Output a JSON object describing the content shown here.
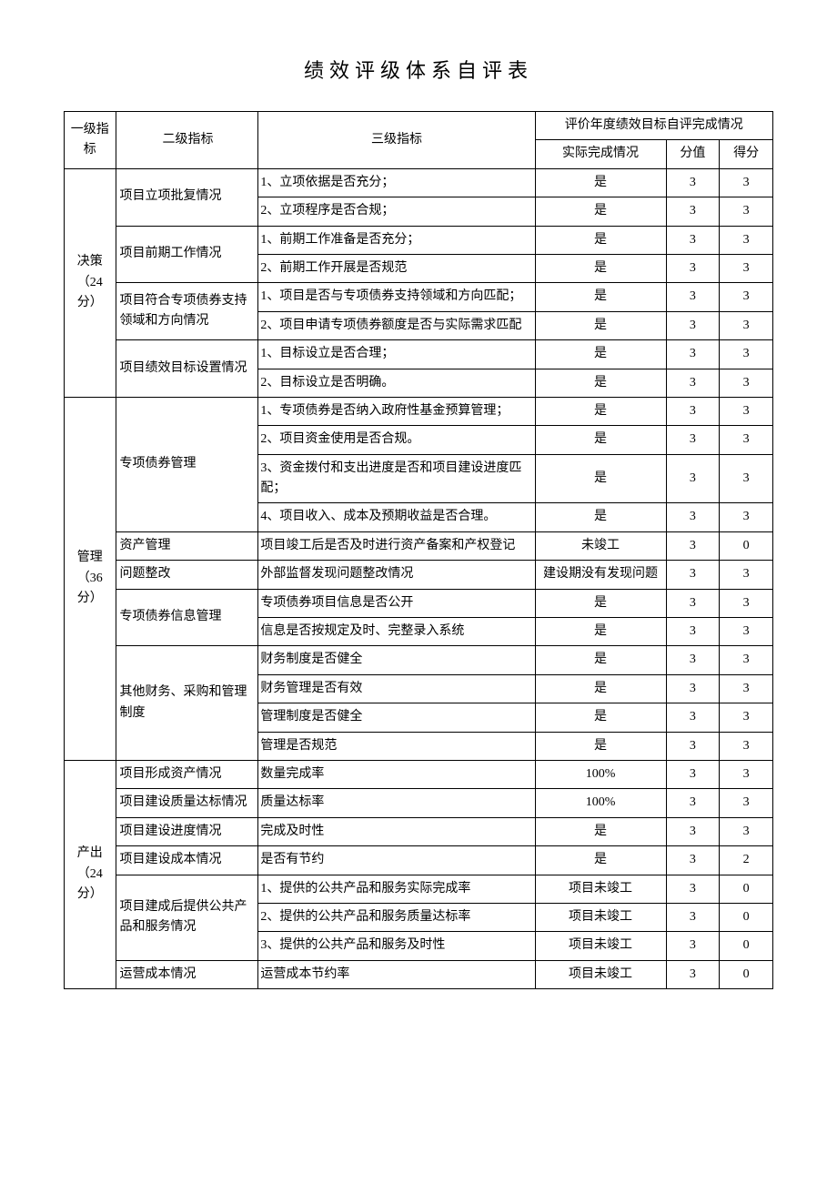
{
  "title": "绩效评级体系自评表",
  "headers": {
    "l1": "一级指标",
    "l2": "二级指标",
    "l3": "三级指标",
    "eval_group": "评价年度绩效目标自评完成情况",
    "actual": "实际完成情况",
    "score": "分值",
    "get": "得分"
  },
  "sections": [
    {
      "l1": "决策（24 分）",
      "groups": [
        {
          "l2": "项目立项批复情况",
          "rows": [
            {
              "l3": "1、立项依据是否充分；",
              "actual": "是",
              "score": "3",
              "get": "3"
            },
            {
              "l3": "2、立项程序是否合规；",
              "actual": "是",
              "score": "3",
              "get": "3"
            }
          ]
        },
        {
          "l2": "项目前期工作情况",
          "rows": [
            {
              "l3": "1、前期工作准备是否充分；",
              "actual": "是",
              "score": "3",
              "get": "3"
            },
            {
              "l3": "2、前期工作开展是否规范",
              "actual": "是",
              "score": "3",
              "get": "3"
            }
          ]
        },
        {
          "l2": "项目符合专项债券支持领域和方向情况",
          "rows": [
            {
              "l3": "1、项目是否与专项债券支持领域和方向匹配；",
              "actual": "是",
              "score": "3",
              "get": "3"
            },
            {
              "l3": "2、项目申请专项债券额度是否与实际需求匹配",
              "actual": "是",
              "score": "3",
              "get": "3"
            }
          ]
        },
        {
          "l2": "项目绩效目标设置情况",
          "rows": [
            {
              "l3": "1、目标设立是否合理；",
              "actual": "是",
              "score": "3",
              "get": "3"
            },
            {
              "l3": "2、目标设立是否明确。",
              "actual": "是",
              "score": "3",
              "get": "3"
            }
          ]
        }
      ]
    },
    {
      "l1": "管理（36 分）",
      "groups": [
        {
          "l2": "专项债券管理",
          "rows": [
            {
              "l3": "1、专项债券是否纳入政府性基金预算管理；",
              "actual": "是",
              "score": "3",
              "get": "3"
            },
            {
              "l3": "2、项目资金使用是否合规。",
              "actual": "是",
              "score": "3",
              "get": "3"
            },
            {
              "l3": "3、资金拨付和支出进度是否和项目建设进度匹配；",
              "actual": "是",
              "score": "3",
              "get": "3"
            },
            {
              "l3": "4、项目收入、成本及预期收益是否合理。",
              "actual": "是",
              "score": "3",
              "get": "3"
            }
          ]
        },
        {
          "l2": "资产管理",
          "rows": [
            {
              "l3": "项目竣工后是否及时进行资产备案和产权登记",
              "actual": "未竣工",
              "score": "3",
              "get": "0"
            }
          ]
        },
        {
          "l2": "问题整改",
          "rows": [
            {
              "l3": "外部监督发现问题整改情况",
              "actual": "建设期没有发现问题",
              "score": "3",
              "get": "3"
            }
          ]
        },
        {
          "l2": "专项债券信息管理",
          "rows": [
            {
              "l3": "专项债券项目信息是否公开",
              "actual": "是",
              "score": "3",
              "get": "3"
            },
            {
              "l3": "信息是否按规定及时、完整录入系统",
              "actual": "是",
              "score": "3",
              "get": "3"
            }
          ]
        },
        {
          "l2": "其他财务、采购和管理制度",
          "rows": [
            {
              "l3": "财务制度是否健全",
              "actual": "是",
              "score": "3",
              "get": "3"
            },
            {
              "l3": "财务管理是否有效",
              "actual": "是",
              "score": "3",
              "get": "3"
            },
            {
              "l3": "管理制度是否健全",
              "actual": "是",
              "score": "3",
              "get": "3"
            },
            {
              "l3": "管理是否规范",
              "actual": "是",
              "score": "3",
              "get": "3"
            }
          ]
        }
      ]
    },
    {
      "l1": "产出（24 分）",
      "groups": [
        {
          "l2": "项目形成资产情况",
          "rows": [
            {
              "l3": "数量完成率",
              "actual": "100%",
              "score": "3",
              "get": "3"
            }
          ]
        },
        {
          "l2": "项目建设质量达标情况",
          "rows": [
            {
              "l3": "质量达标率",
              "actual": "100%",
              "score": "3",
              "get": "3"
            }
          ]
        },
        {
          "l2": "项目建设进度情况",
          "rows": [
            {
              "l3": "完成及时性",
              "actual": "是",
              "score": "3",
              "get": "3"
            }
          ]
        },
        {
          "l2": "项目建设成本情况",
          "rows": [
            {
              "l3": "是否有节约",
              "actual": "是",
              "score": "3",
              "get": "2"
            }
          ]
        },
        {
          "l2": "项目建成后提供公共产品和服务情况",
          "rows": [
            {
              "l3": "1、提供的公共产品和服务实际完成率",
              "actual": "项目未竣工",
              "score": "3",
              "get": "0"
            },
            {
              "l3": "2、提供的公共产品和服务质量达标率",
              "actual": "项目未竣工",
              "score": "3",
              "get": "0"
            },
            {
              "l3": "3、提供的公共产品和服务及时性",
              "actual": "项目未竣工",
              "score": "3",
              "get": "0"
            }
          ]
        },
        {
          "l2": "运营成本情况",
          "rows": [
            {
              "l3": "运营成本节约率",
              "actual": "项目未竣工",
              "score": "3",
              "get": "0"
            }
          ]
        }
      ]
    }
  ]
}
